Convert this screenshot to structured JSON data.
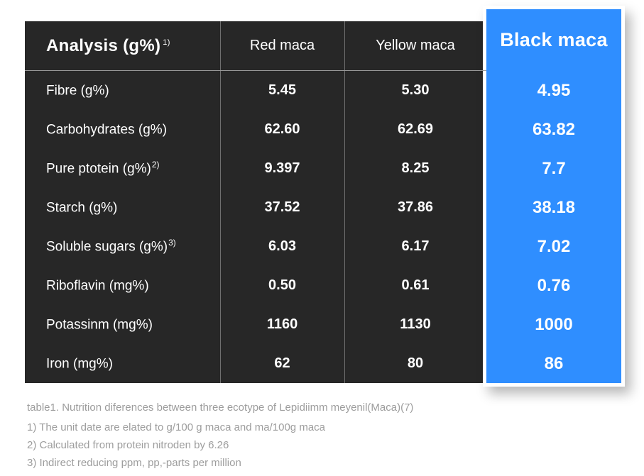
{
  "colors": {
    "accent_blue": "#2f8eff",
    "table_bg": "#272727",
    "footnote_gray": "#9d9d9d"
  },
  "table": {
    "header": {
      "analysis": "Analysis (g%)",
      "analysis_sup": "1)",
      "red": "Red maca",
      "yellow": "Yellow maca",
      "black": "Black maca"
    },
    "rows": [
      {
        "label": "Fibre (g%)",
        "sup": "",
        "red": "5.45",
        "yellow": "5.30",
        "black": "4.95"
      },
      {
        "label": "Carbohydrates (g%)",
        "sup": "",
        "red": "62.60",
        "yellow": "62.69",
        "black": "63.82"
      },
      {
        "label": "Pure ptotein (g%)",
        "sup": "2)",
        "red": "9.397",
        "yellow": "8.25",
        "black": "7.7"
      },
      {
        "label": "Starch (g%)",
        "sup": "",
        "red": "37.52",
        "yellow": "37.86",
        "black": "38.18"
      },
      {
        "label": "Soluble sugars (g%)",
        "sup": "3)",
        "red": "6.03",
        "yellow": "6.17",
        "black": "7.02"
      },
      {
        "label": "Riboflavin (mg%)",
        "sup": "",
        "red": "0.50",
        "yellow": "0.61",
        "black": "0.76"
      },
      {
        "label": "Potassinm (mg%)",
        "sup": "",
        "red": "1160",
        "yellow": "1130",
        "black": "1000"
      },
      {
        "label": "Iron (mg%)",
        "sup": "",
        "red": "62",
        "yellow": "80",
        "black": "86"
      }
    ]
  },
  "footnotes": [
    "table1. Nutrition diferences between three ecotype of Lepidiimm meyenil(Maca)(7)",
    "1) The unit date are elated to g/100 g maca and ma/100g maca",
    "2) Calculated from protein nitroden by 6.26",
    "3) Indirect reducing ppm, pp,-parts per million"
  ],
  "chart_data": {
    "type": "table",
    "title": "table1. Nutrition diferences between three ecotype of Lepidiimm meyenil(Maca)(7)",
    "columns": [
      "Analysis (g%) 1)",
      "Red maca",
      "Yellow maca",
      "Black maca"
    ],
    "rows": [
      [
        "Fibre (g%)",
        5.45,
        5.3,
        4.95
      ],
      [
        "Carbohydrates (g%)",
        62.6,
        62.69,
        63.82
      ],
      [
        "Pure ptotein (g%) 2)",
        9.397,
        8.25,
        7.7
      ],
      [
        "Starch (g%)",
        37.52,
        37.86,
        38.18
      ],
      [
        "Soluble sugars (g%) 3)",
        6.03,
        6.17,
        7.02
      ],
      [
        "Riboflavin (mg%)",
        0.5,
        0.61,
        0.76
      ],
      [
        "Potassinm (mg%)",
        1160,
        1130,
        1000
      ],
      [
        "Iron (mg%)",
        62,
        80,
        86
      ]
    ],
    "highlight_column": "Black maca",
    "footnotes": [
      "1) The unit date are elated to g/100 g maca and ma/100g maca",
      "2) Calculated from protein nitroden by 6.26",
      "3) Indirect reducing ppm, pp,-parts per million"
    ]
  }
}
